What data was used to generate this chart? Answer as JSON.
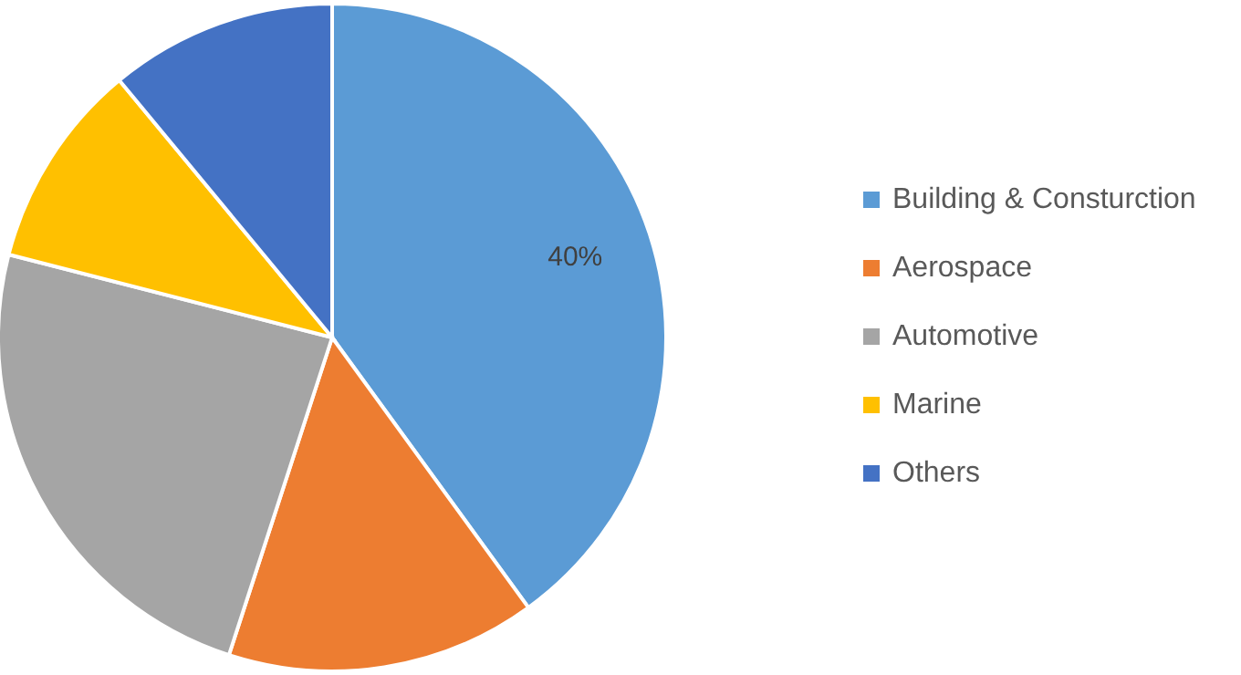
{
  "chart_data": {
    "type": "pie",
    "categories": [
      "Building & Consturction",
      "Aerospace",
      "Automotive",
      "Marine",
      "Others"
    ],
    "values": [
      40,
      15,
      24,
      10,
      11
    ],
    "colors": [
      "#5b9bd5",
      "#ed7d31",
      "#a5a5a5",
      "#ffc000",
      "#4472c4"
    ],
    "value_labels": [
      "40%",
      null,
      null,
      null,
      null
    ],
    "legend": "right"
  }
}
